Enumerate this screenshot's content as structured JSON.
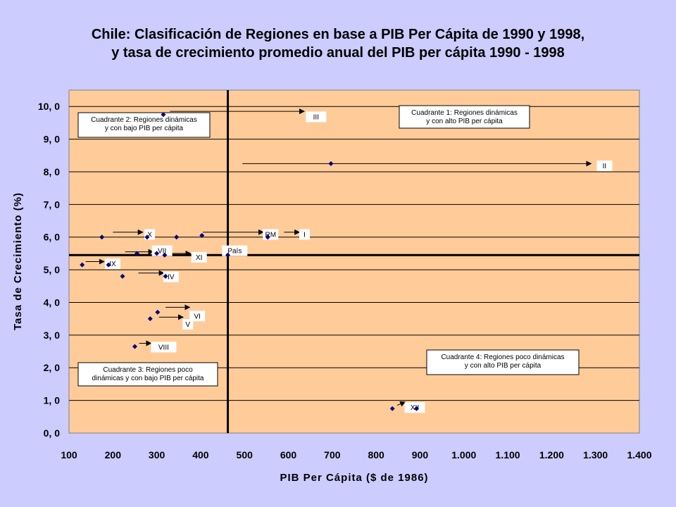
{
  "title": {
    "line1": "Chile: Clasificación de Regiones en base a PIB Per Cápita de 1990 y 1998,",
    "line2": "y tasa de crecimiento promedio anual del PIB per cápita 1990 - 1998"
  },
  "chart_data": {
    "type": "scatter",
    "xlabel": "PIB Per Cápita ($ de 1986)",
    "ylabel": "Tasa de Crecimiento (%)",
    "xlim": [
      100,
      1400
    ],
    "ylim": [
      0,
      10.5
    ],
    "xticks": [
      100,
      200,
      300,
      400,
      500,
      600,
      700,
      800,
      900,
      1000,
      1100,
      1200,
      1300,
      1400
    ],
    "xtick_labels": [
      "100",
      "200",
      "300",
      "400",
      "500",
      "600",
      "700",
      "800",
      "900",
      "1.000",
      "1.100",
      "1.200",
      "1.300",
      "1.400"
    ],
    "yticks": [
      0,
      1,
      2,
      3,
      4,
      5,
      6,
      7,
      8,
      9,
      10
    ],
    "ytick_labels": [
      "0, 0",
      "1, 0",
      "2, 0",
      "3, 0",
      "4, 0",
      "5, 0",
      "6, 0",
      "7, 0",
      "8, 0",
      "9, 0",
      "10, 0"
    ],
    "grid": "horizontal",
    "points": [
      {
        "x": 315,
        "y": 9.75
      },
      {
        "x": 697,
        "y": 8.25
      },
      {
        "x": 175,
        "y": 6.0
      },
      {
        "x": 278,
        "y": 6.0
      },
      {
        "x": 345,
        "y": 6.0
      },
      {
        "x": 403,
        "y": 6.05
      },
      {
        "x": 553,
        "y": 6.0
      },
      {
        "x": 255,
        "y": 5.5
      },
      {
        "x": 300,
        "y": 5.5
      },
      {
        "x": 318,
        "y": 5.45
      },
      {
        "x": 462,
        "y": 5.45
      },
      {
        "x": 130,
        "y": 5.15
      },
      {
        "x": 190,
        "y": 5.15
      },
      {
        "x": 222,
        "y": 4.8
      },
      {
        "x": 320,
        "y": 4.8
      },
      {
        "x": 302,
        "y": 3.7
      },
      {
        "x": 285,
        "y": 3.5
      },
      {
        "x": 250,
        "y": 2.65
      },
      {
        "x": 837,
        "y": 0.75
      },
      {
        "x": 892,
        "y": 0.75
      }
    ],
    "reference_lines": {
      "x": 462,
      "y": 5.45
    },
    "region_labels": [
      {
        "text": "III",
        "tx": 643,
        "ty": 9.65,
        "ax": 330,
        "ay": 9.85,
        "bx": 636,
        "by": 9.85
      },
      {
        "text": "II",
        "tx": 1306,
        "ty": 8.15,
        "ax": 495,
        "ay": 8.25,
        "bx": 1290,
        "by": 8.25
      },
      {
        "text": "X",
        "tx": 275,
        "ty": 6.05,
        "ax": 200,
        "ay": 6.15,
        "bx": 268,
        "by": 6.15
      },
      {
        "text": "RM",
        "tx": 545,
        "ty": 6.05,
        "ax": 405,
        "ay": 6.15,
        "bx": 543,
        "by": 6.15
      },
      {
        "text": "I",
        "tx": 628,
        "ty": 6.05,
        "ax": 590,
        "ay": 6.15,
        "bx": 625,
        "by": 6.15
      },
      {
        "text": "VII",
        "tx": 292,
        "ty": 5.55,
        "ax": 228,
        "ay": 5.55,
        "bx": 292,
        "by": 5.55
      },
      {
        "text": "XI",
        "tx": 382,
        "ty": 5.35,
        "ax": 335,
        "ay": 5.5,
        "bx": 377,
        "by": 5.5
      },
      {
        "text": "País",
        "tx": 452,
        "ty": 5.55,
        "ax": 0,
        "ay": 0,
        "bx": 0,
        "by": 0
      },
      {
        "text": "IX",
        "tx": 185,
        "ty": 5.15,
        "ax": 138,
        "ay": 5.25,
        "bx": 180,
        "by": 5.25
      },
      {
        "text": "IV",
        "tx": 318,
        "ty": 4.75,
        "ax": 258,
        "ay": 4.9,
        "bx": 316,
        "by": 4.9
      },
      {
        "text": "VI",
        "tx": 378,
        "ty": 3.55,
        "ax": 320,
        "ay": 3.85,
        "bx": 375,
        "by": 3.85
      },
      {
        "text": "V",
        "tx": 362,
        "ty": 3.3,
        "ax": 305,
        "ay": 3.55,
        "bx": 360,
        "by": 3.55
      },
      {
        "text": "VIII",
        "tx": 290,
        "ty": 2.6,
        "ax": 260,
        "ay": 2.75,
        "bx": 287,
        "by": 2.75
      },
      {
        "text": "XII",
        "tx": 868,
        "ty": 0.75,
        "ax": 848,
        "ay": 0.85,
        "bx": 866,
        "by": 0.95
      }
    ],
    "quadrants": [
      {
        "lines": [
          "Cuadrante 1: Regiones dinámicas",
          "y con alto PIB per cápita"
        ]
      },
      {
        "lines": [
          "Cuadrante 2: Regiones dinámicas",
          "y con bajo PIB per cápita"
        ]
      },
      {
        "lines": [
          "Cuadrante 3: Regiones poco",
          "dinámicas y con bajo PIB per cápita"
        ]
      },
      {
        "lines": [
          "Cuadrante 4: Regiones poco dinámicas",
          "y con alto PIB per cápita"
        ]
      }
    ]
  },
  "colors": {
    "background": "#CCCCFF",
    "plot_area": "#FFCC99",
    "marker": "#000080",
    "grid": "#000000"
  }
}
